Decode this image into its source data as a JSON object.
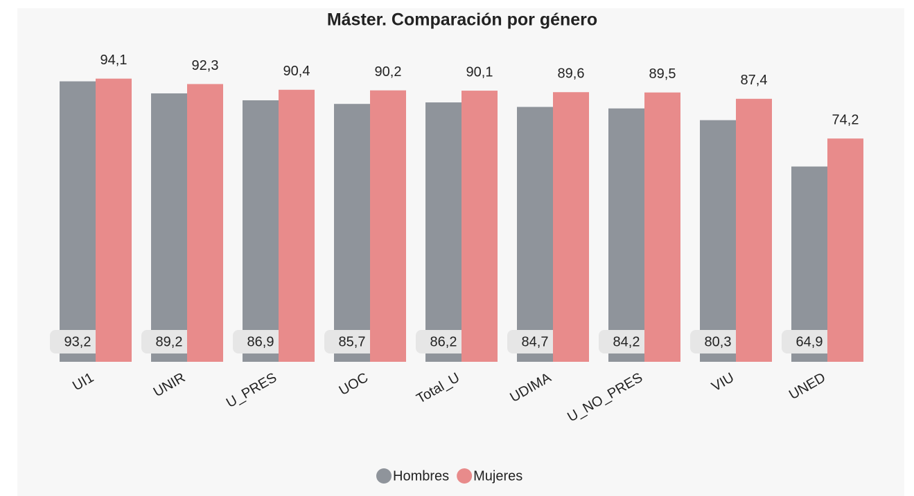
{
  "chart_data": {
    "type": "bar",
    "title": "Máster. Comparación por género",
    "categories": [
      "UI1",
      "UNIR",
      "U_PRES",
      "UOC",
      "Total_U",
      "UDIMA",
      "U_NO_PRES",
      "VIU",
      "UNED"
    ],
    "series": [
      {
        "name": "Hombres",
        "color": "#8f949b",
        "values": [
          93.2,
          89.2,
          86.9,
          85.7,
          86.2,
          84.7,
          84.2,
          80.3,
          64.9
        ],
        "value_labels": [
          "93,2",
          "89,2",
          "86,9",
          "85,7",
          "86,2",
          "84,7",
          "84,2",
          "80,3",
          "64,9"
        ]
      },
      {
        "name": "Mujeres",
        "color": "#e88b8b",
        "values": [
          94.1,
          92.3,
          90.4,
          90.2,
          90.1,
          89.6,
          89.5,
          87.4,
          74.2
        ],
        "value_labels": [
          "94,1",
          "92,3",
          "90,4",
          "90,2",
          "90,1",
          "89,6",
          "89,5",
          "87,4",
          "74,2"
        ]
      }
    ],
    "ylim": [
      0,
      100
    ],
    "legend": "bottom"
  }
}
